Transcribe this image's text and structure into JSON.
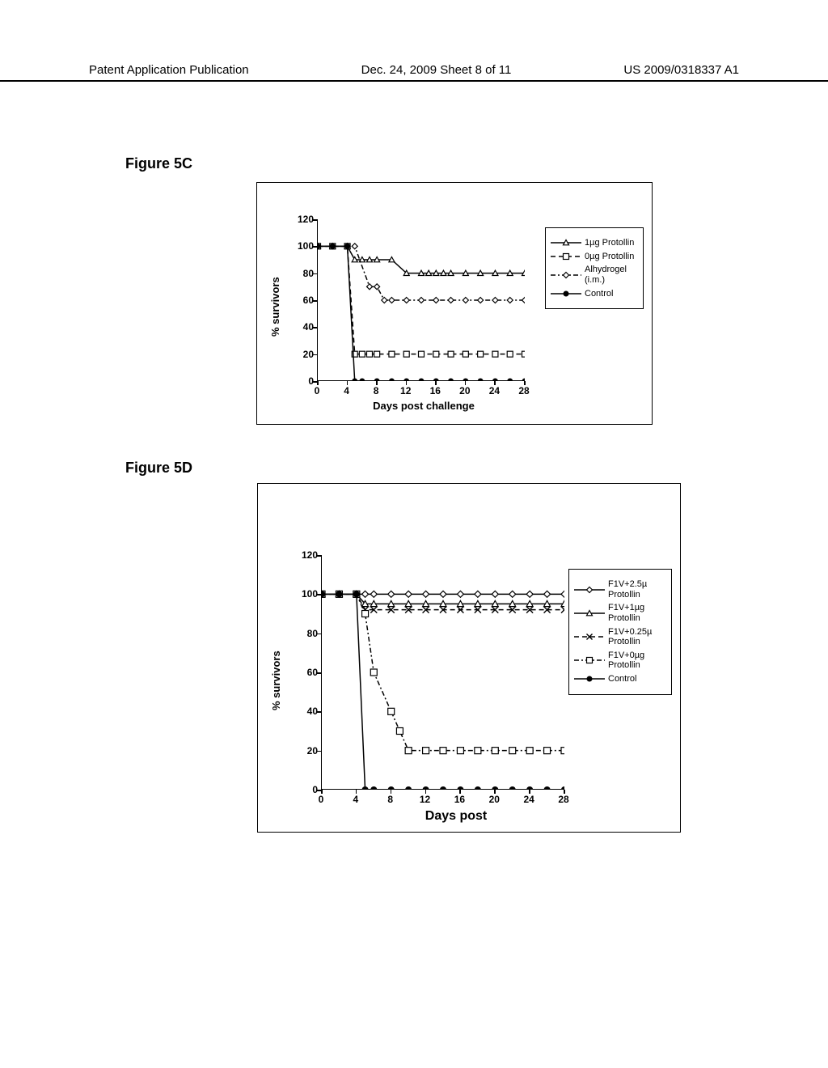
{
  "header": {
    "left": "Patent Application Publication",
    "center": "Dec. 24, 2009  Sheet 8 of 11",
    "right": "US 2009/0318337 A1"
  },
  "figures": {
    "c": {
      "label": "Figure 5C",
      "type": "line_scatter",
      "y_axis": {
        "title": "% survivors",
        "min": 0,
        "max": 120,
        "step": 20
      },
      "x_axis": {
        "title": "Days post challenge",
        "min": 0,
        "max": 28,
        "step": 4
      },
      "colors": {
        "axis": "#000000",
        "bg": "#ffffff",
        "line": "#000000"
      },
      "font": {
        "axis_title_size": 13,
        "tick_size": 12,
        "weight": "bold"
      },
      "series": [
        {
          "label": "1µg Protollin",
          "marker": "triangle-open",
          "dash": "solid",
          "color": "#000000",
          "x": [
            0,
            2,
            4,
            5,
            6,
            7,
            8,
            10,
            12,
            14,
            15,
            16,
            17,
            18,
            20,
            22,
            24,
            26,
            28
          ],
          "y": [
            100,
            100,
            100,
            90,
            90,
            90,
            90,
            90,
            80,
            80,
            80,
            80,
            80,
            80,
            80,
            80,
            80,
            80,
            80
          ]
        },
        {
          "label": "0µg Protollin",
          "marker": "square-open",
          "dash": "dash",
          "color": "#000000",
          "x": [
            0,
            2,
            4,
            5,
            6,
            7,
            8,
            10,
            12,
            14,
            16,
            18,
            20,
            22,
            24,
            26,
            28
          ],
          "y": [
            100,
            100,
            100,
            20,
            20,
            20,
            20,
            20,
            20,
            20,
            20,
            20,
            20,
            20,
            20,
            20,
            20
          ]
        },
        {
          "label": "Alhydrogel (i.m.)",
          "marker": "diamond-open",
          "dash": "dash-dot",
          "color": "#000000",
          "x": [
            0,
            2,
            4,
            5,
            7,
            8,
            9,
            10,
            12,
            14,
            16,
            18,
            20,
            22,
            24,
            26,
            28
          ],
          "y": [
            100,
            100,
            100,
            100,
            70,
            70,
            60,
            60,
            60,
            60,
            60,
            60,
            60,
            60,
            60,
            60,
            60
          ]
        },
        {
          "label": "Control",
          "marker": "circle-filled",
          "dash": "solid",
          "color": "#000000",
          "x": [
            0,
            2,
            4,
            5,
            6,
            8,
            10,
            12,
            14,
            16,
            18,
            20,
            22,
            24,
            26,
            28
          ],
          "y": [
            100,
            100,
            100,
            0,
            0,
            0,
            0,
            0,
            0,
            0,
            0,
            0,
            0,
            0,
            0,
            0
          ]
        }
      ]
    },
    "d": {
      "label": "Figure 5D",
      "type": "line_scatter",
      "y_axis": {
        "title": "% survivors",
        "min": 0,
        "max": 120,
        "step": 20
      },
      "x_axis": {
        "title": "Days post",
        "min": 0,
        "max": 28,
        "step": 4
      },
      "colors": {
        "axis": "#000000",
        "bg": "#ffffff",
        "line": "#000000"
      },
      "font": {
        "axis_title_size": 13,
        "tick_size": 12,
        "weight": "bold"
      },
      "series": [
        {
          "label": "F1V+2.5µ Protollin",
          "marker": "diamond-open",
          "dash": "solid",
          "color": "#000000",
          "x": [
            0,
            2,
            4,
            5,
            6,
            8,
            10,
            12,
            14,
            16,
            18,
            20,
            22,
            24,
            26,
            28
          ],
          "y": [
            100,
            100,
            100,
            100,
            100,
            100,
            100,
            100,
            100,
            100,
            100,
            100,
            100,
            100,
            100,
            100
          ]
        },
        {
          "label": "F1V+1µg Protollin",
          "marker": "triangle-open",
          "dash": "solid",
          "color": "#000000",
          "x": [
            0,
            2,
            4,
            5,
            6,
            8,
            10,
            12,
            14,
            16,
            18,
            20,
            22,
            24,
            26,
            28
          ],
          "y": [
            100,
            100,
            100,
            95,
            95,
            95,
            95,
            95,
            95,
            95,
            95,
            95,
            95,
            95,
            95,
            95
          ]
        },
        {
          "label": "F1V+0.25µ Protollin",
          "marker": "x",
          "dash": "dash",
          "color": "#000000",
          "x": [
            0,
            2,
            4,
            5,
            6,
            8,
            10,
            12,
            14,
            16,
            18,
            20,
            22,
            24,
            26,
            28
          ],
          "y": [
            100,
            100,
            100,
            92,
            92,
            92,
            92,
            92,
            92,
            92,
            92,
            92,
            92,
            92,
            92,
            92
          ]
        },
        {
          "label": "F1V+0µg Protollin",
          "marker": "square-open",
          "dash": "dash-dot",
          "color": "#000000",
          "x": [
            0,
            2,
            4,
            5,
            6,
            8,
            9,
            10,
            12,
            14,
            16,
            18,
            20,
            22,
            24,
            26,
            28
          ],
          "y": [
            100,
            100,
            100,
            90,
            60,
            40,
            30,
            20,
            20,
            20,
            20,
            20,
            20,
            20,
            20,
            20,
            20
          ]
        },
        {
          "label": "Control",
          "marker": "circle-filled",
          "dash": "solid",
          "color": "#000000",
          "x": [
            0,
            2,
            4,
            5,
            6,
            8,
            10,
            12,
            14,
            16,
            18,
            20,
            22,
            24,
            26,
            28
          ],
          "y": [
            100,
            100,
            100,
            0,
            0,
            0,
            0,
            0,
            0,
            0,
            0,
            0,
            0,
            0,
            0,
            0
          ]
        }
      ]
    }
  }
}
